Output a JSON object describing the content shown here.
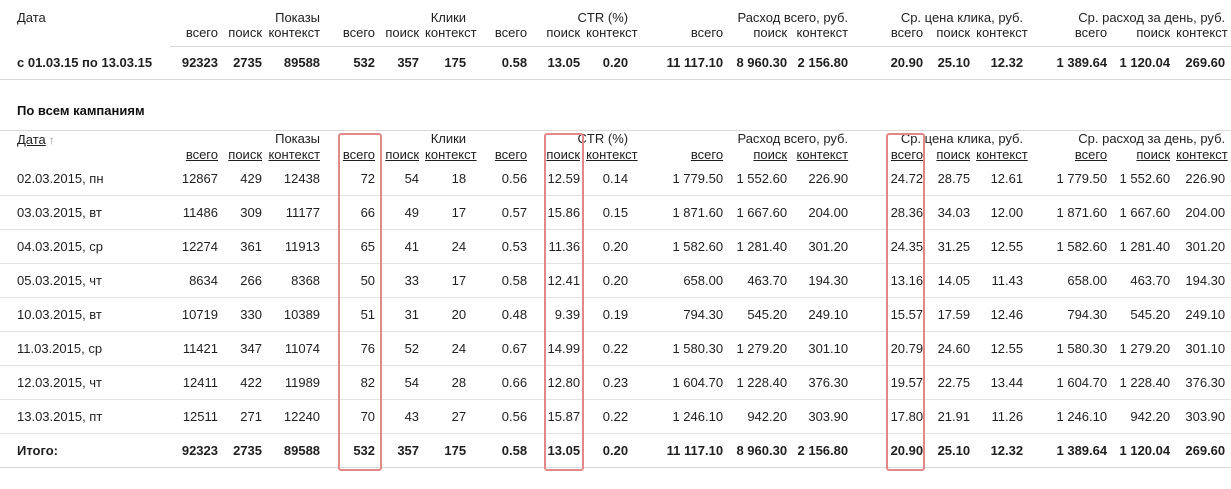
{
  "columns": {
    "sub_labels": [
      "всего",
      "поиск",
      "контекст"
    ],
    "sub_keys": [
      "total",
      "search",
      "context"
    ],
    "groups": [
      {
        "key": "impressions",
        "label": "Показы"
      },
      {
        "key": "clicks",
        "label": "Клики"
      },
      {
        "key": "ctr",
        "label": "CTR (%)"
      },
      {
        "key": "cost",
        "label": "Расход всего, руб."
      },
      {
        "key": "avg-cpc",
        "label": "Ср. цена клика, руб."
      },
      {
        "key": "avg-daily-cost",
        "label": "Ср. расход за день, руб."
      }
    ]
  },
  "summary_table": {
    "date_header": "Дата",
    "row": {
      "date": "с 01.03.15 по 13.03.15",
      "values": [
        "92323",
        "2735",
        "89588",
        "532",
        "357",
        "175",
        "0.58",
        "13.05",
        "0.20",
        "11 117.10",
        "8 960.30",
        "2 156.80",
        "20.90",
        "25.10",
        "12.32",
        "1 389.64",
        "1 120.04",
        "269.60"
      ]
    }
  },
  "campaigns_table": {
    "title": "По всем кампаниям",
    "date_header": "Дата",
    "sort_arrow": "↑",
    "rows": [
      {
        "date": "02.03.2015, пн",
        "values": [
          "12867",
          "429",
          "12438",
          "72",
          "54",
          "18",
          "0.56",
          "12.59",
          "0.14",
          "1 779.50",
          "1 552.60",
          "226.90",
          "24.72",
          "28.75",
          "12.61",
          "1 779.50",
          "1 552.60",
          "226.90"
        ]
      },
      {
        "date": "03.03.2015, вт",
        "values": [
          "11486",
          "309",
          "11177",
          "66",
          "49",
          "17",
          "0.57",
          "15.86",
          "0.15",
          "1 871.60",
          "1 667.60",
          "204.00",
          "28.36",
          "34.03",
          "12.00",
          "1 871.60",
          "1 667.60",
          "204.00"
        ]
      },
      {
        "date": "04.03.2015, ср",
        "values": [
          "12274",
          "361",
          "11913",
          "65",
          "41",
          "24",
          "0.53",
          "11.36",
          "0.20",
          "1 582.60",
          "1 281.40",
          "301.20",
          "24.35",
          "31.25",
          "12.55",
          "1 582.60",
          "1 281.40",
          "301.20"
        ]
      },
      {
        "date": "05.03.2015, чт",
        "values": [
          "8634",
          "266",
          "8368",
          "50",
          "33",
          "17",
          "0.58",
          "12.41",
          "0.20",
          "658.00",
          "463.70",
          "194.30",
          "13.16",
          "14.05",
          "11.43",
          "658.00",
          "463.70",
          "194.30"
        ]
      },
      {
        "date": "10.03.2015, вт",
        "values": [
          "10719",
          "330",
          "10389",
          "51",
          "31",
          "20",
          "0.48",
          "9.39",
          "0.19",
          "794.30",
          "545.20",
          "249.10",
          "15.57",
          "17.59",
          "12.46",
          "794.30",
          "545.20",
          "249.10"
        ]
      },
      {
        "date": "11.03.2015, ср",
        "values": [
          "11421",
          "347",
          "11074",
          "76",
          "52",
          "24",
          "0.67",
          "14.99",
          "0.22",
          "1 580.30",
          "1 279.20",
          "301.10",
          "20.79",
          "24.60",
          "12.55",
          "1 580.30",
          "1 279.20",
          "301.10"
        ]
      },
      {
        "date": "12.03.2015, чт",
        "values": [
          "12411",
          "422",
          "11989",
          "82",
          "54",
          "28",
          "0.66",
          "12.80",
          "0.23",
          "1 604.70",
          "1 228.40",
          "376.30",
          "19.57",
          "22.75",
          "13.44",
          "1 604.70",
          "1 228.40",
          "376.30"
        ]
      },
      {
        "date": "13.03.2015, пт",
        "values": [
          "12511",
          "271",
          "12240",
          "70",
          "43",
          "27",
          "0.56",
          "15.87",
          "0.22",
          "1 246.10",
          "942.20",
          "303.90",
          "17.80",
          "21.91",
          "11.26",
          "1 246.10",
          "942.20",
          "303.90"
        ]
      }
    ],
    "total": {
      "date": "Итого:",
      "values": [
        "92323",
        "2735",
        "89588",
        "532",
        "357",
        "175",
        "0.58",
        "13.05",
        "0.20",
        "11 117.10",
        "8 960.30",
        "2 156.80",
        "20.90",
        "25.10",
        "12.32",
        "1 389.64",
        "1 120.04",
        "269.60"
      ]
    }
  },
  "highlight": {
    "color": "#e18989",
    "columns": [
      "clicks-total",
      "ctr-search",
      "avg-cpc-total"
    ]
  }
}
